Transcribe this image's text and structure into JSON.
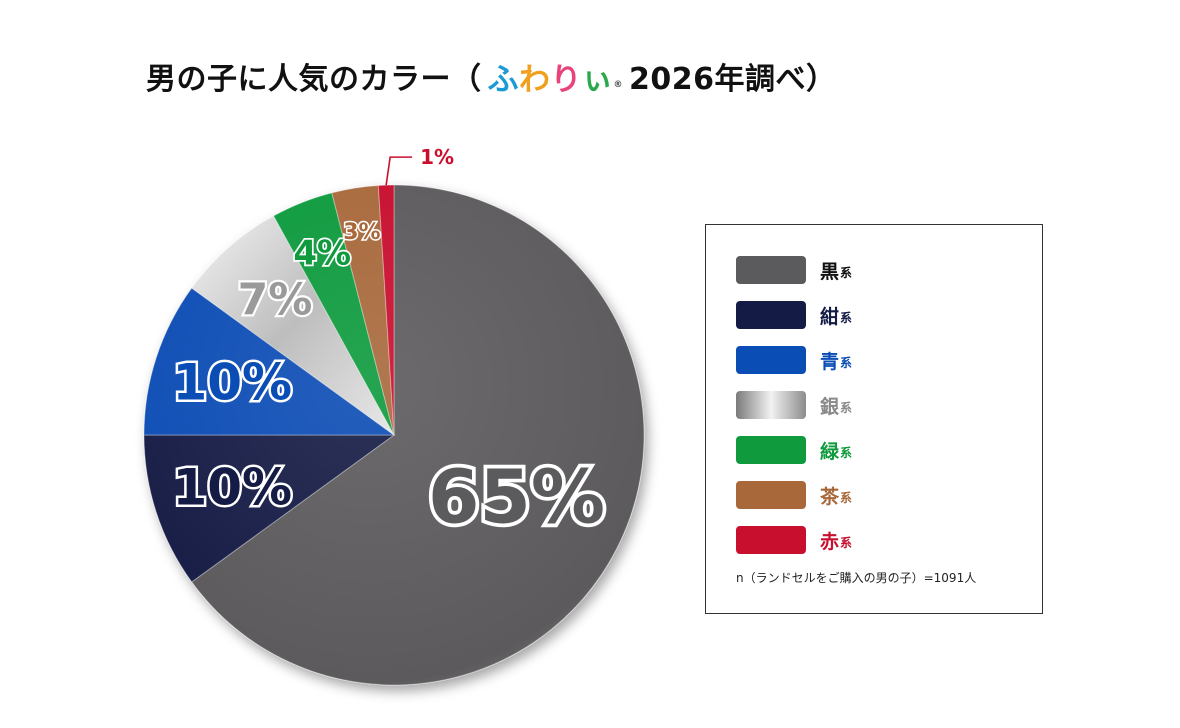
{
  "title": {
    "prefix": "男の子に人気のカラー（",
    "brand_chars": [
      "ふ",
      "わ",
      "り",
      "ぃ"
    ],
    "brand_colors": [
      "#1a9ad6",
      "#f0a01e",
      "#e8437a",
      "#2aa84a"
    ],
    "brand_mark": "®",
    "suffix": "2026年調べ）"
  },
  "chart_data": {
    "type": "pie",
    "title": "男の子に人気のカラー（ふわりぃ®2026年調べ）",
    "unit": "%",
    "slices": [
      {
        "name": "黒",
        "label": "65%",
        "value": 65,
        "color": "#5b5a5c"
      },
      {
        "name": "紺",
        "label": "10%",
        "value": 10,
        "color": "#141b45"
      },
      {
        "name": "青",
        "label": "10%",
        "value": 10,
        "color": "#0a4db5"
      },
      {
        "name": "銀",
        "label": "7%",
        "value": 7,
        "color": "#c9c9c9"
      },
      {
        "name": "緑",
        "label": "4%",
        "value": 4,
        "color": "#0f9a3e"
      },
      {
        "name": "茶",
        "label": "3%",
        "value": 3,
        "color": "#a8683a"
      },
      {
        "name": "赤",
        "label": "1%",
        "value": 1,
        "color": "#c8102e"
      }
    ],
    "legend_position": "right"
  },
  "legend": {
    "suffix": "系",
    "items": [
      {
        "name": "黒",
        "color": "#5b5a5c",
        "text_color": "#111111"
      },
      {
        "name": "紺",
        "color": "#141b45",
        "text_color": "#141b45"
      },
      {
        "name": "青",
        "color": "#0a4db5",
        "text_color": "#0a4db5"
      },
      {
        "name": "銀",
        "color": "#c9c9c9",
        "text_color": "#8a8a8a"
      },
      {
        "name": "緑",
        "color": "#0f9a3e",
        "text_color": "#0f9a3e"
      },
      {
        "name": "茶",
        "color": "#a8683a",
        "text_color": "#a8683a"
      },
      {
        "name": "赤",
        "color": "#c8102e",
        "text_color": "#c8102e"
      }
    ],
    "note": "n（ランドセルをご購入の男の子）=1091人"
  }
}
